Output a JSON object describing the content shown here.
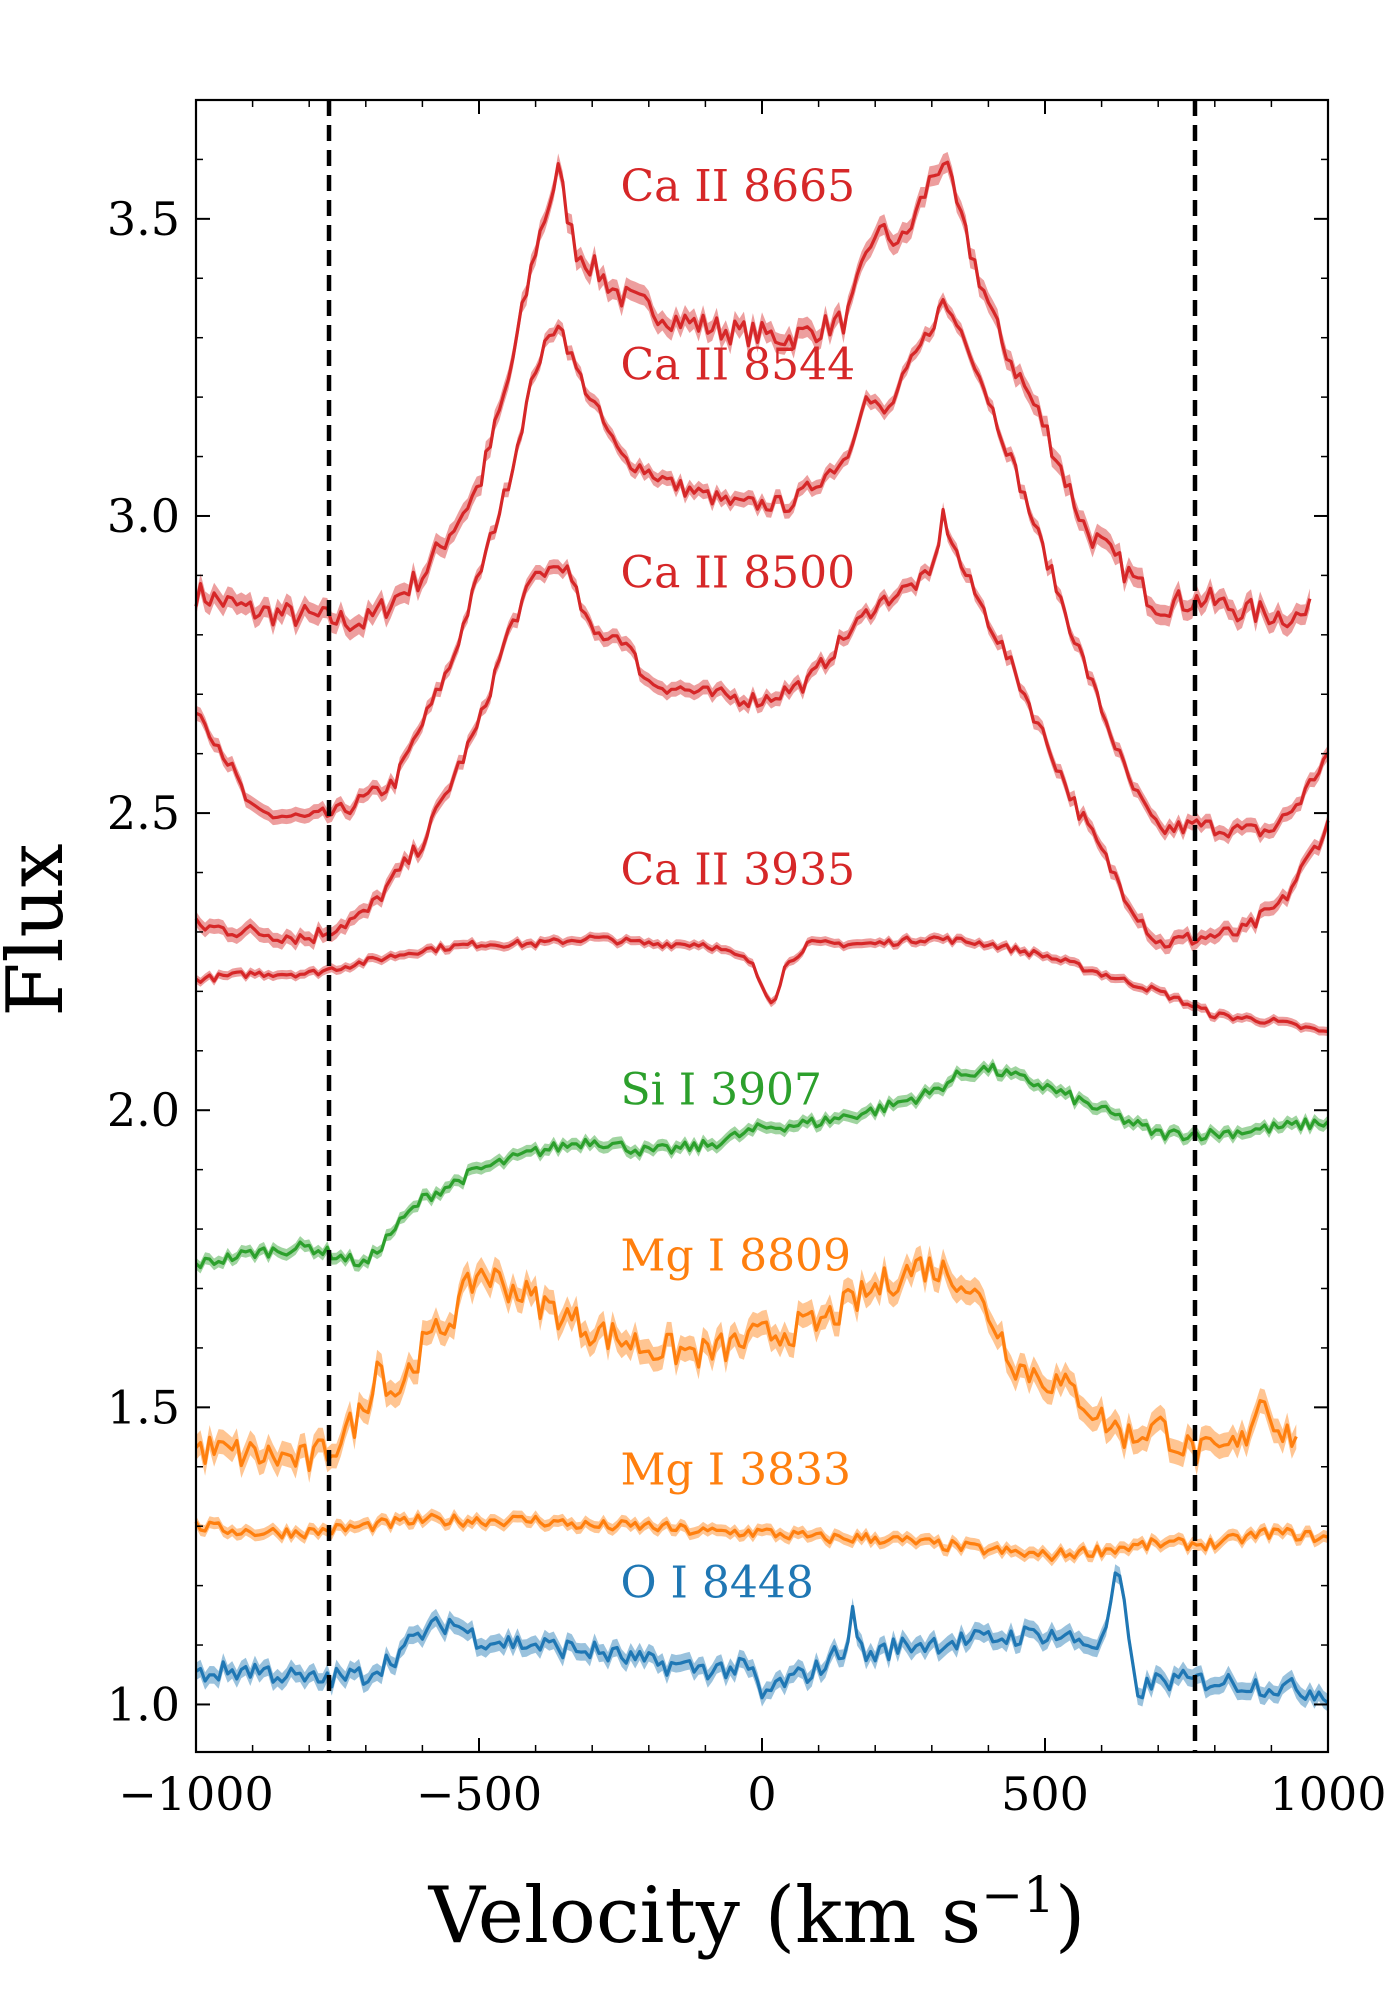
{
  "chart_data": {
    "type": "line",
    "xlabel": "Velocity (km s",
    "xlabel_sup": "−1",
    "xlabel_close": ")",
    "ylabel": "Flux",
    "xlim": [
      -1000,
      1000
    ],
    "ylim": [
      0.92,
      3.7
    ],
    "x_ticks": [
      -1000,
      -500,
      0,
      500,
      1000
    ],
    "x_tick_labels": [
      "−1000",
      "−500",
      "0",
      "500",
      "1000"
    ],
    "y_ticks": [
      1.0,
      1.5,
      2.0,
      2.5,
      3.0,
      3.5
    ],
    "y_tick_labels": [
      "1.0",
      "1.5",
      "2.0",
      "2.5",
      "3.0",
      "3.5"
    ],
    "vlines": [
      -765,
      765
    ],
    "series": [
      {
        "name": "Ca II 8665",
        "color": "#d62728",
        "noise": 0.022,
        "label_x": -250,
        "label_y": 3.53,
        "points": [
          [
            -1000,
            2.87
          ],
          [
            -900,
            2.84
          ],
          [
            -800,
            2.83
          ],
          [
            -700,
            2.82
          ],
          [
            -600,
            2.9
          ],
          [
            -500,
            3.05
          ],
          [
            -450,
            3.22
          ],
          [
            -400,
            3.45
          ],
          [
            -360,
            3.58
          ],
          [
            -330,
            3.45
          ],
          [
            -250,
            3.37
          ],
          [
            -150,
            3.33
          ],
          [
            -50,
            3.31
          ],
          [
            50,
            3.3
          ],
          [
            150,
            3.33
          ],
          [
            200,
            3.48
          ],
          [
            250,
            3.46
          ],
          [
            300,
            3.57
          ],
          [
            320,
            3.6
          ],
          [
            360,
            3.47
          ],
          [
            420,
            3.3
          ],
          [
            500,
            3.15
          ],
          [
            570,
            2.98
          ],
          [
            650,
            2.9
          ],
          [
            700,
            2.85
          ],
          [
            780,
            2.86
          ],
          [
            850,
            2.84
          ],
          [
            950,
            2.83
          ],
          [
            970,
            2.84
          ]
        ]
      },
      {
        "name": "Ca II 8544",
        "color": "#d62728",
        "noise": 0.014,
        "label_x": -250,
        "label_y": 3.23,
        "points": [
          [
            -1000,
            2.68
          ],
          [
            -950,
            2.6
          ],
          [
            -900,
            2.5
          ],
          [
            -800,
            2.49
          ],
          [
            -750,
            2.5
          ],
          [
            -650,
            2.55
          ],
          [
            -550,
            2.75
          ],
          [
            -450,
            3.05
          ],
          [
            -400,
            3.25
          ],
          [
            -360,
            3.33
          ],
          [
            -330,
            3.25
          ],
          [
            -250,
            3.1
          ],
          [
            -150,
            3.05
          ],
          [
            -50,
            3.02
          ],
          [
            50,
            3.02
          ],
          [
            150,
            3.1
          ],
          [
            180,
            3.2
          ],
          [
            220,
            3.17
          ],
          [
            260,
            3.25
          ],
          [
            300,
            3.32
          ],
          [
            320,
            3.36
          ],
          [
            360,
            3.3
          ],
          [
            450,
            3.07
          ],
          [
            550,
            2.8
          ],
          [
            650,
            2.55
          ],
          [
            700,
            2.47
          ],
          [
            770,
            2.48
          ],
          [
            850,
            2.47
          ],
          [
            900,
            2.47
          ],
          [
            950,
            2.52
          ],
          [
            1000,
            2.6
          ]
        ]
      },
      {
        "name": "Ca II 8500",
        "color": "#d62728",
        "noise": 0.014,
        "label_x": -250,
        "label_y": 2.88,
        "points": [
          [
            -1000,
            2.31
          ],
          [
            -900,
            2.3
          ],
          [
            -800,
            2.29
          ],
          [
            -700,
            2.33
          ],
          [
            -600,
            2.45
          ],
          [
            -500,
            2.65
          ],
          [
            -450,
            2.8
          ],
          [
            -400,
            2.9
          ],
          [
            -350,
            2.92
          ],
          [
            -300,
            2.8
          ],
          [
            -250,
            2.8
          ],
          [
            -200,
            2.72
          ],
          [
            -100,
            2.7
          ],
          [
            0,
            2.69
          ],
          [
            80,
            2.72
          ],
          [
            150,
            2.8
          ],
          [
            200,
            2.85
          ],
          [
            300,
            2.9
          ],
          [
            320,
            3.0
          ],
          [
            350,
            2.92
          ],
          [
            450,
            2.73
          ],
          [
            550,
            2.52
          ],
          [
            650,
            2.35
          ],
          [
            700,
            2.28
          ],
          [
            770,
            2.29
          ],
          [
            850,
            2.3
          ],
          [
            920,
            2.35
          ],
          [
            1000,
            2.48
          ]
        ]
      },
      {
        "name": "Ca II 3935",
        "color": "#d62728",
        "noise": 0.006,
        "label_x": -250,
        "label_y": 2.38,
        "points": [
          [
            -1000,
            2.22
          ],
          [
            -900,
            2.23
          ],
          [
            -800,
            2.23
          ],
          [
            -700,
            2.25
          ],
          [
            -600,
            2.27
          ],
          [
            -500,
            2.28
          ],
          [
            -400,
            2.28
          ],
          [
            -300,
            2.29
          ],
          [
            -200,
            2.28
          ],
          [
            -100,
            2.28
          ],
          [
            -20,
            2.25
          ],
          [
            0,
            2.21
          ],
          [
            20,
            2.18
          ],
          [
            40,
            2.24
          ],
          [
            80,
            2.28
          ],
          [
            200,
            2.28
          ],
          [
            300,
            2.29
          ],
          [
            400,
            2.28
          ],
          [
            500,
            2.26
          ],
          [
            600,
            2.23
          ],
          [
            700,
            2.2
          ],
          [
            800,
            2.16
          ],
          [
            900,
            2.15
          ],
          [
            1000,
            2.13
          ]
        ]
      },
      {
        "name": "Si I 3907",
        "color": "#2ca02c",
        "noise": 0.01,
        "label_x": -250,
        "label_y": 2.01,
        "points": [
          [
            -1000,
            1.74
          ],
          [
            -900,
            1.76
          ],
          [
            -800,
            1.77
          ],
          [
            -700,
            1.74
          ],
          [
            -650,
            1.8
          ],
          [
            -600,
            1.85
          ],
          [
            -500,
            1.9
          ],
          [
            -400,
            1.93
          ],
          [
            -300,
            1.95
          ],
          [
            -200,
            1.93
          ],
          [
            -100,
            1.94
          ],
          [
            0,
            1.97
          ],
          [
            100,
            1.98
          ],
          [
            200,
            2.0
          ],
          [
            300,
            2.03
          ],
          [
            350,
            2.06
          ],
          [
            400,
            2.07
          ],
          [
            500,
            2.04
          ],
          [
            600,
            2.0
          ],
          [
            700,
            1.96
          ],
          [
            800,
            1.96
          ],
          [
            900,
            1.97
          ],
          [
            1000,
            1.98
          ]
        ]
      },
      {
        "name": "Mg I 8809",
        "color": "#ff7f0e",
        "noise": 0.028,
        "label_x": -250,
        "label_y": 1.73,
        "points": [
          [
            -1000,
            1.43
          ],
          [
            -900,
            1.42
          ],
          [
            -800,
            1.41
          ],
          [
            -750,
            1.44
          ],
          [
            -700,
            1.5
          ],
          [
            -680,
            1.58
          ],
          [
            -650,
            1.52
          ],
          [
            -600,
            1.6
          ],
          [
            -550,
            1.65
          ],
          [
            -500,
            1.73
          ],
          [
            -400,
            1.68
          ],
          [
            -300,
            1.63
          ],
          [
            -200,
            1.6
          ],
          [
            -100,
            1.59
          ],
          [
            0,
            1.62
          ],
          [
            100,
            1.64
          ],
          [
            200,
            1.7
          ],
          [
            280,
            1.74
          ],
          [
            350,
            1.72
          ],
          [
            400,
            1.66
          ],
          [
            450,
            1.57
          ],
          [
            500,
            1.55
          ],
          [
            560,
            1.52
          ],
          [
            600,
            1.48
          ],
          [
            650,
            1.45
          ],
          [
            700,
            1.47
          ],
          [
            750,
            1.43
          ],
          [
            800,
            1.42
          ],
          [
            850,
            1.44
          ],
          [
            880,
            1.52
          ],
          [
            920,
            1.46
          ],
          [
            950,
            1.45
          ]
        ]
      },
      {
        "name": "Mg I 3833",
        "color": "#ff7f0e",
        "noise": 0.01,
        "label_x": -250,
        "label_y": 1.37,
        "points": [
          [
            -1000,
            1.3
          ],
          [
            -900,
            1.29
          ],
          [
            -800,
            1.29
          ],
          [
            -700,
            1.3
          ],
          [
            -600,
            1.31
          ],
          [
            -500,
            1.31
          ],
          [
            -400,
            1.31
          ],
          [
            -300,
            1.3
          ],
          [
            -200,
            1.3
          ],
          [
            -100,
            1.29
          ],
          [
            0,
            1.29
          ],
          [
            100,
            1.28
          ],
          [
            200,
            1.28
          ],
          [
            300,
            1.27
          ],
          [
            400,
            1.26
          ],
          [
            500,
            1.25
          ],
          [
            600,
            1.26
          ],
          [
            700,
            1.27
          ],
          [
            800,
            1.27
          ],
          [
            900,
            1.29
          ],
          [
            1000,
            1.28
          ]
        ]
      },
      {
        "name": "O I 8448",
        "color": "#1f77b4",
        "noise": 0.018,
        "label_x": -250,
        "label_y": 1.18,
        "points": [
          [
            -1000,
            1.05
          ],
          [
            -900,
            1.06
          ],
          [
            -800,
            1.04
          ],
          [
            -700,
            1.05
          ],
          [
            -650,
            1.08
          ],
          [
            -600,
            1.12
          ],
          [
            -550,
            1.14
          ],
          [
            -500,
            1.11
          ],
          [
            -400,
            1.1
          ],
          [
            -300,
            1.09
          ],
          [
            -200,
            1.07
          ],
          [
            -100,
            1.06
          ],
          [
            -20,
            1.06
          ],
          [
            0,
            1.01
          ],
          [
            20,
            1.03
          ],
          [
            100,
            1.06
          ],
          [
            150,
            1.1
          ],
          [
            160,
            1.15
          ],
          [
            180,
            1.08
          ],
          [
            250,
            1.1
          ],
          [
            400,
            1.11
          ],
          [
            500,
            1.12
          ],
          [
            600,
            1.1
          ],
          [
            630,
            1.23
          ],
          [
            660,
            1.02
          ],
          [
            700,
            1.04
          ],
          [
            800,
            1.04
          ],
          [
            900,
            1.03
          ],
          [
            1000,
            1.02
          ]
        ]
      }
    ]
  }
}
